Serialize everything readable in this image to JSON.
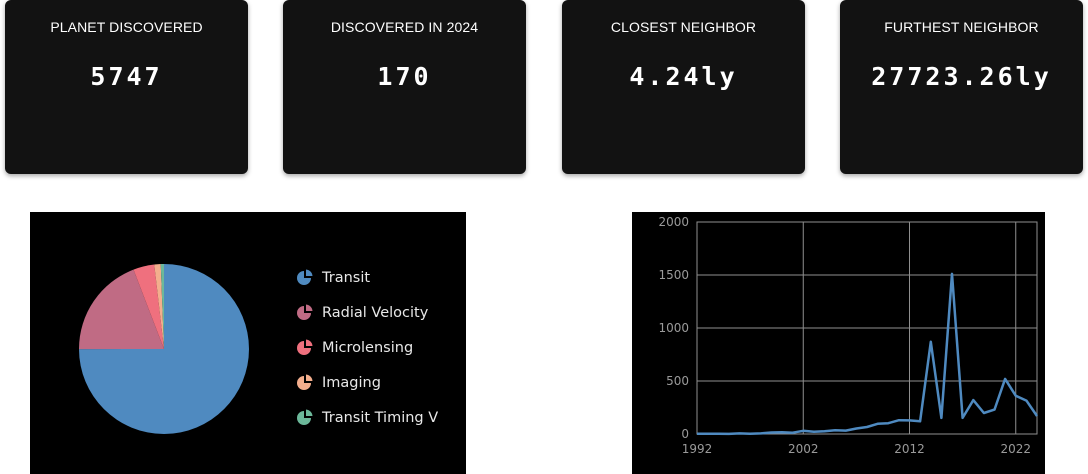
{
  "stats": [
    {
      "title": "PLANET DISCOVERED",
      "value": "5747"
    },
    {
      "title": "DISCOVERED IN 2024",
      "value": "170"
    },
    {
      "title": "CLOSEST NEIGHBOR",
      "value": "4.24ly"
    },
    {
      "title": "FURTHEST NEIGHBOR",
      "value": "27723.26ly"
    }
  ],
  "chart_data": [
    {
      "type": "pie",
      "labels": [
        "Transit",
        "Radial Velocity",
        "Microlensing",
        "Imaging",
        "Transit Timing V"
      ],
      "values": [
        4300,
        1100,
        230,
        70,
        35
      ],
      "colors": [
        "#4f8ac0",
        "#c06b84",
        "#ef707e",
        "#f3ae8d",
        "#6cb89a"
      ],
      "legend": "right"
    },
    {
      "type": "line",
      "x": [
        1992,
        1994,
        1995,
        1996,
        1997,
        1998,
        1999,
        2000,
        2001,
        2002,
        2003,
        2004,
        2005,
        2006,
        2007,
        2008,
        2009,
        2010,
        2011,
        2012,
        2013,
        2014,
        2015,
        2016,
        2017,
        2018,
        2019,
        2020,
        2021,
        2022,
        2023,
        2024
      ],
      "values": [
        2,
        3,
        1,
        6,
        2,
        6,
        14,
        16,
        12,
        30,
        22,
        26,
        36,
        32,
        52,
        66,
        96,
        102,
        130,
        128,
        120,
        870,
        152,
        1510,
        152,
        320,
        198,
        230,
        520,
        360,
        315,
        170
      ],
      "xlim": [
        1992,
        2024
      ],
      "ylim": [
        0,
        2000
      ],
      "xticks": [
        1992,
        2002,
        2012,
        2022
      ],
      "yticks": [
        0,
        500,
        1000,
        1500,
        2000
      ],
      "grid": true,
      "color": "#4f8ac0"
    }
  ]
}
